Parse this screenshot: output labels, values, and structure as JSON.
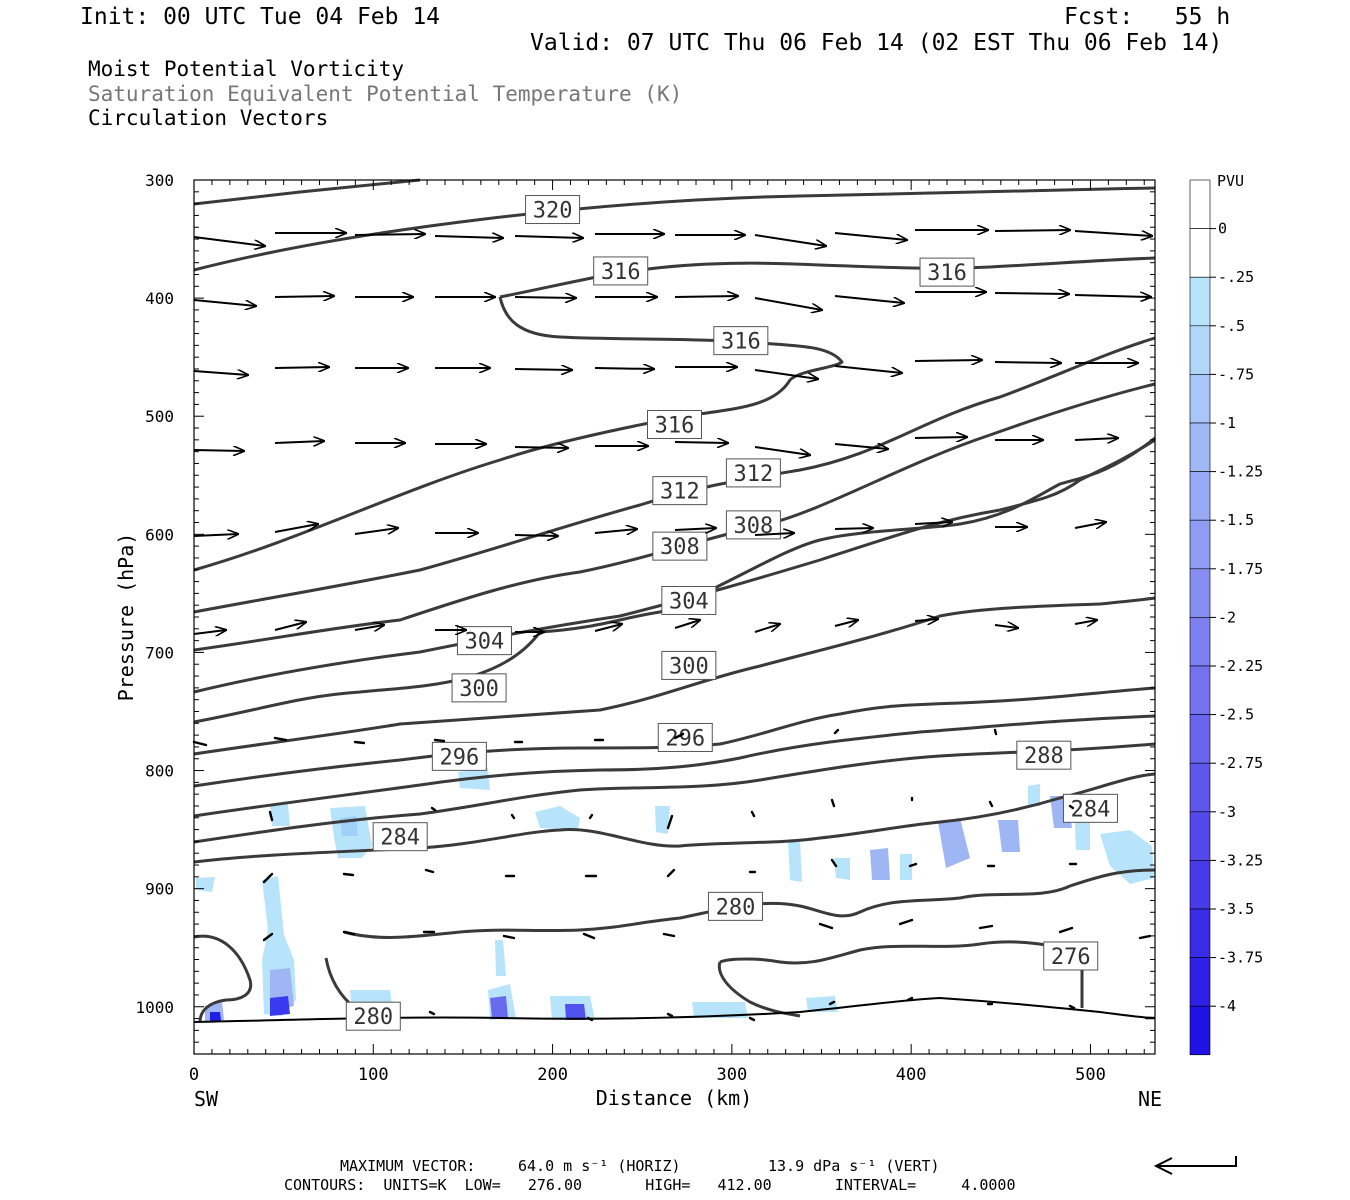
{
  "header": {
    "init": "Init: 00 UTC Tue 04 Feb 14",
    "fcst": "Fcst:   55 h",
    "valid": "Valid: 07 UTC Thu 06 Feb 14 (02 EST Thu 06 Feb 14)",
    "field1": "Moist Potential Vorticity",
    "field2": "Saturation Equivalent Potential Temperature (K)",
    "field3": "Circulation Vectors"
  },
  "footer": {
    "maxvec_label": "MAXIMUM VECTOR:",
    "maxvec_horiz": "64.0 m s⁻¹ (HORIZ)",
    "maxvec_vert": "13.9 dPa s⁻¹ (VERT)",
    "contours": "CONTOURS:  UNITS=K  LOW=   276.00       HIGH=   412.00       INTERVAL=     4.0000"
  },
  "colors": {
    "contour": "#3a3a3a",
    "vector": "#000000",
    "pv_light": "#b8e4fb",
    "pv_mid": "#9fb6f4",
    "pv_deep": "#1f1fe6"
  },
  "chart_data": {
    "type": "cross-section",
    "xlabel": "Distance (km)",
    "ylabel": "Pressure (hPa)",
    "x_ticks": [
      0,
      100,
      200,
      300,
      400,
      500
    ],
    "xlim": [
      0,
      536
    ],
    "y_ticks": [
      300,
      400,
      500,
      600,
      700,
      800,
      900,
      1000
    ],
    "ylim": [
      1040,
      300
    ],
    "end_labels": {
      "left": "SW",
      "right": "NE"
    },
    "colorbar": {
      "units": "PVU",
      "labels": [
        "0",
        "-.25",
        "-.5",
        "-.75",
        "-1",
        "-1.25",
        "-1.5",
        "-1.75",
        "-2",
        "-2.25",
        "-2.5",
        "-2.75",
        "-3",
        "-3.25",
        "-3.5",
        "-3.75",
        "-4"
      ]
    },
    "contour_labels": [
      {
        "text": "320",
        "x": 200,
        "p": 325
      },
      {
        "text": "316",
        "x": 238,
        "p": 377
      },
      {
        "text": "316",
        "x": 420,
        "p": 378
      },
      {
        "text": "316",
        "x": 305,
        "p": 436
      },
      {
        "text": "316",
        "x": 268,
        "p": 507
      },
      {
        "text": "312",
        "x": 312,
        "p": 548
      },
      {
        "text": "312",
        "x": 271,
        "p": 563
      },
      {
        "text": "308",
        "x": 312,
        "p": 592
      },
      {
        "text": "308",
        "x": 271,
        "p": 610
      },
      {
        "text": "304",
        "x": 276,
        "p": 656
      },
      {
        "text": "304",
        "x": 162,
        "p": 690
      },
      {
        "text": "300",
        "x": 276,
        "p": 711
      },
      {
        "text": "300",
        "x": 159,
        "p": 730
      },
      {
        "text": "296",
        "x": 274,
        "p": 772
      },
      {
        "text": "296",
        "x": 148,
        "p": 788
      },
      {
        "text": "288",
        "x": 474,
        "p": 787
      },
      {
        "text": "284",
        "x": 500,
        "p": 832
      },
      {
        "text": "284",
        "x": 115,
        "p": 856
      },
      {
        "text": "280",
        "x": 302,
        "p": 915
      },
      {
        "text": "276",
        "x": 489,
        "p": 957
      },
      {
        "text": "280",
        "x": 100,
        "p": 1008
      }
    ]
  }
}
